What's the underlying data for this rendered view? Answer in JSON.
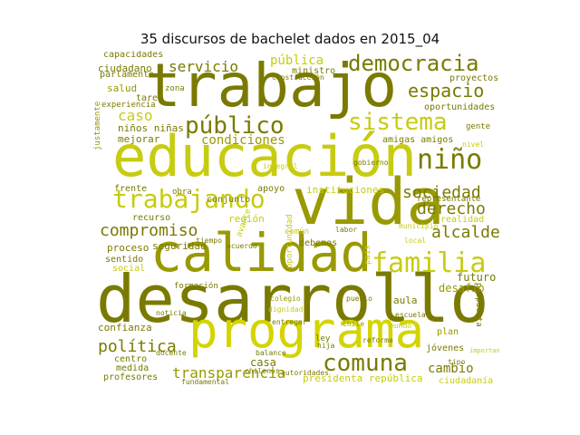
{
  "title": "35 discursos de bachelet dados en 2015_04",
  "colors": {
    "dark": "#7a7a00",
    "mid": "#999900",
    "light": "#c7cc11",
    "bright": "#d4d400"
  },
  "words": [
    {
      "text": "trabajo",
      "color": "dark"
    },
    {
      "text": "educación",
      "color": "light"
    },
    {
      "text": "vida",
      "color": "mid"
    },
    {
      "text": "calidad",
      "color": "mid"
    },
    {
      "text": "desarrollo",
      "color": "dark"
    },
    {
      "text": "programa",
      "color": "bright"
    },
    {
      "text": "trabajando",
      "color": "light"
    },
    {
      "text": "democracia",
      "color": "dark"
    },
    {
      "text": "público",
      "color": "dark"
    },
    {
      "text": "sistema",
      "color": "light"
    },
    {
      "text": "familia",
      "color": "light"
    },
    {
      "text": "niño",
      "color": "dark"
    },
    {
      "text": "espacio",
      "color": "dark"
    },
    {
      "text": "sociedad",
      "color": "dark"
    },
    {
      "text": "derecho",
      "color": "dark"
    },
    {
      "text": "alcalde",
      "color": "dark"
    },
    {
      "text": "comuna",
      "color": "dark"
    },
    {
      "text": "compromiso",
      "color": "dark"
    },
    {
      "text": "servicio",
      "color": "dark"
    },
    {
      "text": "pública",
      "color": "light"
    },
    {
      "text": "caso",
      "color": "light"
    },
    {
      "text": "condiciones",
      "color": "mid"
    },
    {
      "text": "política",
      "color": "dark"
    },
    {
      "text": "transparencia",
      "color": "mid"
    },
    {
      "text": "cambio",
      "color": "dark"
    },
    {
      "text": "capacidades",
      "color": "dark"
    },
    {
      "text": "ciudadano",
      "color": "dark"
    },
    {
      "text": "amigas amigos",
      "color": "dark"
    },
    {
      "text": "oportunidades",
      "color": "dark"
    },
    {
      "text": "futuro",
      "color": "dark"
    },
    {
      "text": "desafío",
      "color": "mid"
    },
    {
      "text": "instituciones",
      "color": "light"
    },
    {
      "text": "región",
      "color": "light"
    },
    {
      "text": "seguridad",
      "color": "dark"
    },
    {
      "text": "proceso",
      "color": "dark"
    },
    {
      "text": "confianza",
      "color": "dark"
    },
    {
      "text": "frente",
      "color": "dark"
    },
    {
      "text": "recurso",
      "color": "dark"
    },
    {
      "text": "salud",
      "color": "mid"
    },
    {
      "text": "tarea",
      "color": "dark"
    },
    {
      "text": "experiencia",
      "color": "dark"
    },
    {
      "text": "niños niñas",
      "color": "dark"
    },
    {
      "text": "mejorar",
      "color": "dark"
    },
    {
      "text": "conjunto",
      "color": "dark"
    },
    {
      "text": "apoyo",
      "color": "dark"
    },
    {
      "text": "sentido",
      "color": "dark"
    },
    {
      "text": "social",
      "color": "light"
    },
    {
      "text": "centro",
      "color": "dark"
    },
    {
      "text": "medida",
      "color": "dark"
    },
    {
      "text": "profesores",
      "color": "dark"
    },
    {
      "text": "presidenta república",
      "color": "light"
    },
    {
      "text": "ciudadanía",
      "color": "light"
    },
    {
      "text": "jóvenes",
      "color": "dark"
    },
    {
      "text": "plan",
      "color": "mid"
    },
    {
      "text": "proyectos",
      "color": "dark"
    },
    {
      "text": "parlamento",
      "color": "dark"
    },
    {
      "text": "ministro",
      "color": "dark"
    },
    {
      "text": "zona",
      "color": "dark"
    },
    {
      "text": "común",
      "color": "light"
    },
    {
      "text": "debemos",
      "color": "dark"
    },
    {
      "text": "realidad",
      "color": "light"
    },
    {
      "text": "representante",
      "color": "dark"
    },
    {
      "text": "gente",
      "color": "dark"
    },
    {
      "text": "formación",
      "color": "dark"
    },
    {
      "text": "obra",
      "color": "dark"
    },
    {
      "text": "avance",
      "color": "light"
    },
    {
      "text": "oportunidad",
      "color": "light"
    },
    {
      "text": "país",
      "color": "light"
    },
    {
      "text": "propuesta",
      "color": "dark"
    },
    {
      "text": "dignidad",
      "color": "light"
    },
    {
      "text": "casa",
      "color": "dark"
    },
    {
      "text": "autoridades",
      "color": "dark"
    },
    {
      "text": "construcción",
      "color": "dark"
    },
    {
      "text": "docente",
      "color": "dark"
    },
    {
      "text": "justamente",
      "color": "mid"
    },
    {
      "text": "nivel",
      "color": "light"
    },
    {
      "text": "chilenos",
      "color": "dark"
    },
    {
      "text": "labor",
      "color": "dark"
    },
    {
      "text": "noticia",
      "color": "dark"
    },
    {
      "text": "entregar",
      "color": "dark"
    },
    {
      "text": "aula",
      "color": "dark"
    },
    {
      "text": "fundamental",
      "color": "dark"
    },
    {
      "text": "importantes",
      "color": "light"
    },
    {
      "text": "gobierno",
      "color": "dark"
    },
    {
      "text": "ley",
      "color": "dark"
    },
    {
      "text": "mundo",
      "color": "light"
    },
    {
      "text": "chile",
      "color": "mid"
    },
    {
      "text": "acuerdo",
      "color": "dark"
    },
    {
      "text": "local",
      "color": "light"
    },
    {
      "text": "tiempo",
      "color": "dark"
    },
    {
      "text": "colegio",
      "color": "mid"
    },
    {
      "text": "escuela",
      "color": "dark"
    },
    {
      "text": "municipio",
      "color": "light"
    },
    {
      "text": "reforma",
      "color": "dark"
    },
    {
      "text": "hija",
      "color": "dark"
    },
    {
      "text": "balance",
      "color": "dark"
    },
    {
      "text": "pueblo",
      "color": "dark"
    },
    {
      "text": "tipo",
      "color": "dark"
    },
    {
      "text": "integral",
      "color": "light"
    }
  ]
}
